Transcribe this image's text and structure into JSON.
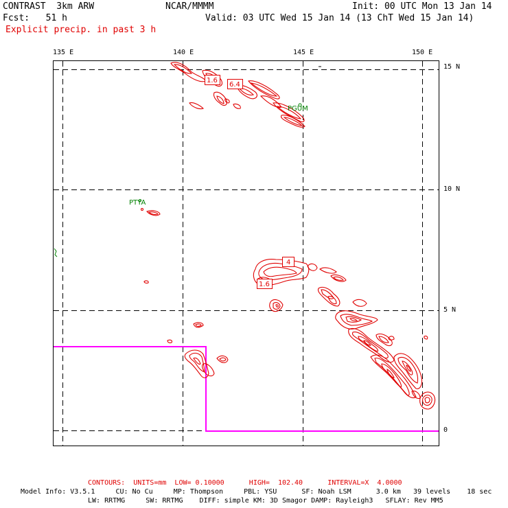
{
  "header": {
    "model": "CONTRAST  3km ARW",
    "center": "NCAR/MMMM",
    "init": "Init: 00 UTC Mon 13 Jan 14",
    "fcst": "Fcst:   51 h",
    "valid": "Valid: 03 UTC Wed 15 Jan 14 (13 ChT Wed 15 Jan 14)",
    "field": "Explicit precip. in past 3 h"
  },
  "axes": {
    "lon_labels": [
      "135 E",
      "140 E",
      "145 E",
      "150 E"
    ],
    "lat_labels": [
      "15 N",
      "10 N",
      "5 N",
      "0"
    ]
  },
  "stations": [
    "PGUM",
    "PTYA"
  ],
  "contour_labels": [
    "1.6",
    "6.4",
    "4",
    "1.6"
  ],
  "footer": {
    "contours": "CONTOURS:  UNITS=mm  LOW= 0.10000      HIGH=  102.40      INTERVAL=X  4.0000",
    "model_info_1": "Model Info: V3.5.1     CU: No Cu     MP: Thompson     PBL: YSU      SF: Noah LSM      3.0 km   39 levels    18 sec",
    "model_info_2": "LW: RRTMG     SW: RRTMG    DIFF: simple KM: 3D Smagor DAMP: Rayleigh3   SFLAY: Rev MM5"
  },
  "colors": {
    "contour": "#e00000",
    "boundary": "#ff00ff",
    "station": "#008000"
  }
}
